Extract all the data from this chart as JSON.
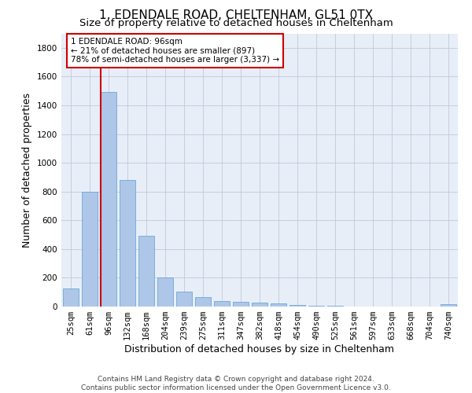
{
  "title": "1, EDENDALE ROAD, CHELTENHAM, GL51 0TX",
  "subtitle": "Size of property relative to detached houses in Cheltenham",
  "xlabel": "Distribution of detached houses by size in Cheltenham",
  "ylabel": "Number of detached properties",
  "categories": [
    "25sqm",
    "61sqm",
    "96sqm",
    "132sqm",
    "168sqm",
    "204sqm",
    "239sqm",
    "275sqm",
    "311sqm",
    "347sqm",
    "382sqm",
    "418sqm",
    "454sqm",
    "490sqm",
    "525sqm",
    "561sqm",
    "597sqm",
    "633sqm",
    "668sqm",
    "704sqm",
    "740sqm"
  ],
  "values": [
    125,
    800,
    1490,
    880,
    490,
    205,
    105,
    65,
    40,
    35,
    30,
    20,
    10,
    5,
    3,
    2,
    2,
    1,
    1,
    1,
    15
  ],
  "bar_color": "#aec6e8",
  "bar_edge_color": "#5a9fd4",
  "highlight_index": 2,
  "red_line_color": "#cc0000",
  "ylim": [
    0,
    1900
  ],
  "yticks": [
    0,
    200,
    400,
    600,
    800,
    1000,
    1200,
    1400,
    1600,
    1800
  ],
  "annotation_text": "1 EDENDALE ROAD: 96sqm\n← 21% of detached houses are smaller (897)\n78% of semi-detached houses are larger (3,337) →",
  "annotation_box_color": "#ffffff",
  "annotation_box_edge": "#cc0000",
  "footer_line1": "Contains HM Land Registry data © Crown copyright and database right 2024.",
  "footer_line2": "Contains public sector information licensed under the Open Government Licence v3.0.",
  "background_color": "#ffffff",
  "plot_bg_color": "#e8eef8",
  "grid_color": "#c0c8d8",
  "title_fontsize": 11,
  "subtitle_fontsize": 9.5,
  "axis_label_fontsize": 9,
  "tick_fontsize": 7.5,
  "footer_fontsize": 6.5,
  "annotation_fontsize": 7.5
}
